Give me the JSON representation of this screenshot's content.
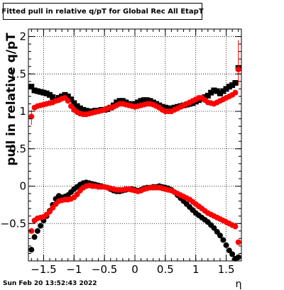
{
  "page": {
    "datestamp": "Sun Feb 20 13:52:43 2022"
  },
  "chart_data": {
    "type": "scatter",
    "title": "Fitted pull in relative q/pT for Global Rec All EtapT",
    "xlabel": "η",
    "ylabel": "pull in relative q/pT",
    "xlim": [
      -1.75,
      1.75
    ],
    "ylim": [
      -1.0,
      2.1
    ],
    "grid": true,
    "xticks": [
      -1.5,
      -1,
      -0.5,
      0,
      0.5,
      1,
      1.5
    ],
    "xtick_labels": [
      "−1.5",
      "−1",
      "−0.5",
      "0",
      "0.5",
      "1",
      "1.5"
    ],
    "yticks": [
      -0.5,
      0,
      0.5,
      1,
      1.5,
      2
    ],
    "ytick_labels": [
      "−0.5",
      "0",
      "0.5",
      "1",
      "1.5",
      "2"
    ],
    "colors": {
      "black_series": "#000000",
      "red_series": "#ff0000"
    },
    "series": [
      {
        "marker": "square",
        "color": "#000000",
        "x": [
          -1.7,
          -1.65,
          -1.6,
          -1.55,
          -1.5,
          -1.45,
          -1.4,
          -1.35,
          -1.3,
          -1.25,
          -1.2,
          -1.15,
          -1.1,
          -1.05,
          -1.0,
          -0.95,
          -0.9,
          -0.85,
          -0.8,
          -0.75,
          -0.7,
          -0.65,
          -0.6,
          -0.55,
          -0.5,
          -0.45,
          -0.4,
          -0.35,
          -0.3,
          -0.25,
          -0.2,
          -0.15,
          -0.1,
          -0.05,
          0.0,
          0.05,
          0.1,
          0.15,
          0.2,
          0.25,
          0.3,
          0.35,
          0.4,
          0.45,
          0.5,
          0.55,
          0.6,
          0.65,
          0.7,
          0.75,
          0.8,
          0.85,
          0.9,
          0.95,
          1.0,
          1.05,
          1.1,
          1.15,
          1.2,
          1.25,
          1.3,
          1.35,
          1.4,
          1.45,
          1.5,
          1.55,
          1.6,
          1.65,
          1.7
        ],
        "y": [
          1.33,
          1.28,
          1.27,
          1.26,
          1.25,
          1.24,
          1.22,
          1.19,
          1.15,
          1.18,
          1.2,
          1.22,
          1.2,
          1.16,
          1.11,
          1.07,
          1.04,
          1.02,
          1.01,
          1.0,
          1.0,
          1.01,
          1.01,
          1.02,
          1.02,
          1.03,
          1.05,
          1.08,
          1.12,
          1.14,
          1.14,
          1.12,
          1.1,
          1.09,
          1.1,
          1.12,
          1.14,
          1.15,
          1.15,
          1.14,
          1.12,
          1.1,
          1.08,
          1.06,
          1.05,
          1.04,
          1.04,
          1.05,
          1.06,
          1.07,
          1.08,
          1.09,
          1.1,
          1.11,
          1.13,
          1.15,
          1.17,
          1.19,
          1.21,
          1.25,
          1.28,
          1.27,
          1.24,
          1.27,
          1.3,
          1.33,
          1.35,
          1.38,
          1.58
        ]
      },
      {
        "marker": "circle",
        "color": "#ff0000",
        "x": [
          -1.7,
          -1.65,
          -1.6,
          -1.55,
          -1.5,
          -1.45,
          -1.4,
          -1.35,
          -1.3,
          -1.25,
          -1.2,
          -1.15,
          -1.1,
          -1.05,
          -1.0,
          -0.95,
          -0.9,
          -0.85,
          -0.8,
          -0.75,
          -0.7,
          -0.65,
          -0.6,
          -0.55,
          -0.5,
          -0.45,
          -0.4,
          -0.35,
          -0.3,
          -0.25,
          -0.2,
          -0.15,
          -0.1,
          -0.05,
          0.0,
          0.05,
          0.1,
          0.15,
          0.2,
          0.25,
          0.3,
          0.35,
          0.4,
          0.45,
          0.5,
          0.55,
          0.6,
          0.65,
          0.7,
          0.75,
          0.8,
          0.85,
          0.9,
          0.95,
          1.0,
          1.05,
          1.1,
          1.15,
          1.2,
          1.25,
          1.3,
          1.35,
          1.4,
          1.45,
          1.5,
          1.55,
          1.6,
          1.65,
          1.7
        ],
        "y": [
          0.93,
          1.05,
          1.07,
          1.08,
          1.09,
          1.1,
          1.11,
          1.12,
          1.14,
          1.15,
          1.17,
          1.18,
          1.14,
          1.07,
          1.02,
          0.99,
          0.97,
          0.96,
          0.96,
          0.97,
          0.98,
          0.99,
          1.0,
          1.01,
          1.02,
          1.04,
          1.05,
          1.06,
          1.08,
          1.1,
          1.1,
          1.09,
          1.08,
          1.07,
          1.06,
          1.07,
          1.08,
          1.09,
          1.1,
          1.1,
          1.09,
          1.07,
          1.05,
          1.02,
          1.0,
          1.0,
          1.0,
          1.02,
          1.04,
          1.06,
          1.08,
          1.1,
          1.12,
          1.14,
          1.16,
          1.18,
          1.18,
          1.15,
          1.12,
          1.11,
          1.1,
          1.12,
          1.14,
          1.16,
          1.18,
          1.2,
          1.22,
          1.25,
          1.56
        ]
      },
      {
        "marker": "circle",
        "color": "#000000",
        "x": [
          -1.7,
          -1.65,
          -1.6,
          -1.55,
          -1.5,
          -1.45,
          -1.4,
          -1.35,
          -1.3,
          -1.25,
          -1.2,
          -1.15,
          -1.1,
          -1.05,
          -1.0,
          -0.95,
          -0.9,
          -0.85,
          -0.8,
          -0.75,
          -0.7,
          -0.65,
          -0.6,
          -0.55,
          -0.5,
          -0.45,
          -0.4,
          -0.35,
          -0.3,
          -0.25,
          -0.2,
          -0.15,
          -0.1,
          -0.05,
          0.0,
          0.05,
          0.1,
          0.15,
          0.2,
          0.25,
          0.3,
          0.35,
          0.4,
          0.45,
          0.5,
          0.55,
          0.6,
          0.65,
          0.7,
          0.75,
          0.8,
          0.85,
          0.9,
          0.95,
          1.0,
          1.05,
          1.1,
          1.15,
          1.2,
          1.25,
          1.3,
          1.35,
          1.4,
          1.45,
          1.5,
          1.55,
          1.6,
          1.65,
          1.7
        ],
        "y": [
          -0.85,
          -0.68,
          -0.6,
          -0.53,
          -0.46,
          -0.4,
          -0.33,
          -0.25,
          -0.17,
          -0.13,
          -0.15,
          -0.14,
          -0.12,
          -0.08,
          -0.04,
          -0.01,
          0.02,
          0.04,
          0.05,
          0.04,
          0.03,
          0.02,
          0.01,
          0.0,
          -0.01,
          -0.02,
          -0.04,
          -0.06,
          -0.07,
          -0.07,
          -0.06,
          -0.05,
          -0.04,
          -0.04,
          -0.05,
          -0.06,
          -0.05,
          -0.03,
          -0.02,
          -0.02,
          -0.01,
          -0.01,
          0.0,
          -0.01,
          -0.02,
          -0.03,
          -0.05,
          -0.08,
          -0.12,
          -0.16,
          -0.2,
          -0.24,
          -0.28,
          -0.32,
          -0.36,
          -0.39,
          -0.42,
          -0.45,
          -0.48,
          -0.52,
          -0.56,
          -0.61,
          -0.66,
          -0.72,
          -0.79,
          -0.86,
          -0.91,
          -0.97,
          -0.95
        ]
      },
      {
        "marker": "circle",
        "color": "#ff0000",
        "x": [
          -1.7,
          -1.65,
          -1.6,
          -1.55,
          -1.5,
          -1.45,
          -1.4,
          -1.35,
          -1.3,
          -1.25,
          -1.2,
          -1.15,
          -1.1,
          -1.05,
          -1.0,
          -0.95,
          -0.9,
          -0.85,
          -0.8,
          -0.75,
          -0.7,
          -0.65,
          -0.6,
          -0.55,
          -0.5,
          -0.45,
          -0.4,
          -0.35,
          -0.3,
          -0.25,
          -0.2,
          -0.15,
          -0.1,
          -0.05,
          0.0,
          0.05,
          0.1,
          0.15,
          0.2,
          0.25,
          0.3,
          0.35,
          0.4,
          0.45,
          0.5,
          0.55,
          0.6,
          0.65,
          0.7,
          0.75,
          0.8,
          0.85,
          0.9,
          0.95,
          1.0,
          1.05,
          1.1,
          1.15,
          1.2,
          1.25,
          1.3,
          1.35,
          1.4,
          1.45,
          1.5,
          1.55,
          1.6,
          1.65,
          1.7
        ],
        "y": [
          -0.6,
          -0.46,
          -0.43,
          -0.42,
          -0.41,
          -0.38,
          -0.34,
          -0.29,
          -0.24,
          -0.2,
          -0.19,
          -0.18,
          -0.18,
          -0.17,
          -0.15,
          -0.11,
          -0.06,
          -0.02,
          0.0,
          0.01,
          0.0,
          0.0,
          -0.01,
          -0.01,
          -0.01,
          -0.02,
          -0.03,
          -0.04,
          -0.05,
          -0.05,
          -0.05,
          -0.04,
          -0.04,
          -0.05,
          -0.06,
          -0.07,
          -0.06,
          -0.04,
          -0.03,
          -0.02,
          -0.02,
          -0.02,
          -0.02,
          -0.03,
          -0.04,
          -0.05,
          -0.06,
          -0.08,
          -0.1,
          -0.12,
          -0.14,
          -0.16,
          -0.18,
          -0.21,
          -0.24,
          -0.27,
          -0.3,
          -0.33,
          -0.36,
          -0.38,
          -0.4,
          -0.42,
          -0.44,
          -0.46,
          -0.48,
          -0.5,
          -0.52,
          -0.54,
          -0.75
        ]
      }
    ],
    "error_bars": [
      {
        "series": 1,
        "x": 1.7,
        "y_low": 1.35,
        "y_high": 1.95
      },
      {
        "series": 1,
        "x": -1.7,
        "y_low": 0.82,
        "y_high": 1.02
      }
    ]
  }
}
